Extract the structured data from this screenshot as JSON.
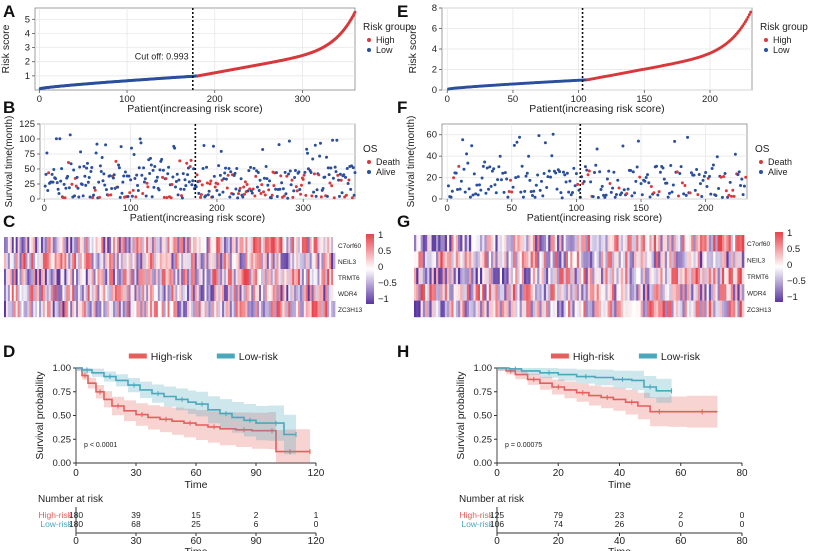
{
  "colors": {
    "high": "#d9393b",
    "low": "#2a4f9c",
    "km_high": "#e3605c",
    "km_low": "#4aa8bd",
    "hm_high": "#e8424b",
    "hm_low": "#5a36a1"
  },
  "panels": {
    "A": "A",
    "B": "B",
    "C": "C",
    "D": "D",
    "E": "E",
    "F": "F",
    "G": "G",
    "H": "H"
  },
  "chart_data": [
    {
      "id": "A",
      "type": "scatter",
      "title": "",
      "xlabel": "Patient(increasing risk score)",
      "ylabel": "Risk score",
      "xlim": [
        -5,
        360
      ],
      "ylim": [
        0,
        5.8
      ],
      "xticks": [
        0,
        100,
        200,
        300
      ],
      "yticks": [
        1,
        2,
        3,
        4,
        5
      ],
      "n": 360,
      "cutoff_index": 175,
      "cutoff_label": "Cut off: 0.993",
      "cutoff_value": 0.993,
      "legend": {
        "title": "Risk group",
        "items": [
          "High",
          "Low"
        ]
      },
      "series": [
        {
          "name": "Low",
          "range": [
            1,
            180
          ],
          "from": 0.1,
          "to": 0.99
        },
        {
          "name": "High",
          "range": [
            181,
            360
          ],
          "from": 1.0,
          "to": 5.5
        }
      ]
    },
    {
      "id": "B",
      "type": "scatter",
      "xlabel": "Patient(increasing risk score)",
      "ylabel": "Survival time(month)",
      "xlim": [
        -5,
        360
      ],
      "ylim": [
        0,
        125
      ],
      "xticks": [
        0,
        100,
        200,
        300
      ],
      "yticks": [
        0,
        25,
        50,
        75,
        100,
        125
      ],
      "n": 360,
      "cutoff_index": 175,
      "legend": {
        "title": "OS",
        "items": [
          "Death",
          "Alive"
        ]
      },
      "series": [
        {
          "name": "Death"
        },
        {
          "name": "Alive"
        }
      ]
    },
    {
      "id": "C",
      "type": "heatmap",
      "genes": [
        "C7orf60",
        "NEIL3",
        "TRMT6",
        "WDR4",
        "ZC3H13"
      ],
      "colorbar_ticks": [
        "1",
        "0.5",
        "0",
        "−0.5",
        "−1"
      ]
    },
    {
      "id": "D",
      "type": "line",
      "legend": [
        "High-risk",
        "Low-risk"
      ],
      "xlabel": "Time",
      "ylabel": "Survival probability",
      "xlim": [
        0,
        120
      ],
      "ylim": [
        0,
        1
      ],
      "xticks": [
        0,
        30,
        60,
        90,
        120
      ],
      "yticks": [
        "0.00",
        "0.25",
        "0.50",
        "0.75",
        "1.00"
      ],
      "pvalue": "p < 0.0001",
      "series": [
        {
          "name": "High-risk",
          "x": [
            0,
            3,
            6,
            10,
            14,
            18,
            24,
            30,
            36,
            42,
            48,
            54,
            60,
            66,
            72,
            80,
            88,
            96,
            100,
            104,
            110,
            117
          ],
          "y": [
            1,
            0.92,
            0.84,
            0.75,
            0.67,
            0.6,
            0.55,
            0.51,
            0.48,
            0.46,
            0.44,
            0.42,
            0.4,
            0.38,
            0.36,
            0.35,
            0.34,
            0.34,
            0.12,
            0.12,
            0.12,
            0.12
          ]
        },
        {
          "name": "Low-risk",
          "x": [
            0,
            3,
            8,
            14,
            20,
            26,
            32,
            38,
            44,
            50,
            56,
            60,
            66,
            72,
            78,
            84,
            90,
            96,
            104,
            110
          ],
          "y": [
            1,
            0.98,
            0.95,
            0.91,
            0.87,
            0.82,
            0.77,
            0.73,
            0.7,
            0.67,
            0.64,
            0.62,
            0.56,
            0.52,
            0.48,
            0.45,
            0.42,
            0.42,
            0.3,
            0.3
          ]
        }
      ]
    },
    {
      "id": "D-risk",
      "type": "table",
      "title": "Number at risk",
      "xlabel": "Time",
      "rows": [
        {
          "name": "High-risk",
          "values": [
            "180",
            "39",
            "15",
            "2",
            "1"
          ]
        },
        {
          "name": "Low-risk",
          "values": [
            "180",
            "68",
            "25",
            "6",
            "0"
          ]
        }
      ],
      "xticks": [
        0,
        30,
        60,
        90,
        120
      ]
    },
    {
      "id": "E",
      "type": "scatter",
      "xlabel": "Patient(increasing risk score)",
      "ylabel": "Risk score",
      "xlim": [
        -4,
        232
      ],
      "ylim": [
        0,
        8
      ],
      "xticks": [
        0,
        50,
        100,
        150,
        200
      ],
      "yticks": [
        0,
        2,
        4,
        6,
        8
      ],
      "n": 231,
      "cutoff_index": 103,
      "legend": {
        "title": "Risk group",
        "items": [
          "High",
          "Low"
        ]
      },
      "series": [
        {
          "name": "Low",
          "range": [
            1,
            106
          ],
          "from": 0.1,
          "to": 0.99
        },
        {
          "name": "High",
          "range": [
            107,
            231
          ],
          "from": 1.0,
          "to": 7.6
        }
      ]
    },
    {
      "id": "F",
      "type": "scatter",
      "xlabel": "Patient(increasing risk score)",
      "ylabel": "Survival time(month)",
      "xlim": [
        -4,
        232
      ],
      "ylim": [
        0,
        70
      ],
      "xticks": [
        0,
        50,
        100,
        150,
        200
      ],
      "yticks": [
        0,
        20,
        40,
        60
      ],
      "n": 231,
      "cutoff_index": 103,
      "legend": {
        "title": "OS",
        "items": [
          "Death",
          "Alive"
        ]
      },
      "series": [
        {
          "name": "Death"
        },
        {
          "name": "Alive"
        }
      ]
    },
    {
      "id": "G",
      "type": "heatmap",
      "genes": [
        "C7orf60",
        "NEIL3",
        "TRMT6",
        "WDR4",
        "ZC3H13"
      ],
      "colorbar_ticks": [
        "1",
        "0.5",
        "0",
        "−0.5",
        "−1"
      ]
    },
    {
      "id": "H",
      "type": "line",
      "legend": [
        "High-risk",
        "Low-risk"
      ],
      "xlabel": "Time",
      "ylabel": "Survival probability",
      "xlim": [
        0,
        80
      ],
      "ylim": [
        0,
        1
      ],
      "xticks": [
        0,
        20,
        40,
        60,
        80
      ],
      "yticks": [
        "0.00",
        "0.25",
        "0.50",
        "0.75",
        "1.00"
      ],
      "pvalue": "p = 0.00075",
      "series": [
        {
          "name": "High-risk",
          "x": [
            0,
            3,
            6,
            10,
            14,
            18,
            22,
            26,
            30,
            34,
            38,
            42,
            46,
            50,
            56,
            62,
            72
          ],
          "y": [
            1,
            0.97,
            0.93,
            0.88,
            0.84,
            0.8,
            0.77,
            0.74,
            0.71,
            0.69,
            0.67,
            0.64,
            0.6,
            0.54,
            0.54,
            0.54,
            0.54
          ]
        },
        {
          "name": "Low-risk",
          "x": [
            0,
            4,
            8,
            14,
            20,
            26,
            32,
            38,
            44,
            48,
            52,
            57
          ],
          "y": [
            1,
            0.99,
            0.97,
            0.95,
            0.93,
            0.91,
            0.9,
            0.88,
            0.87,
            0.8,
            0.76,
            0.76
          ]
        }
      ]
    },
    {
      "id": "H-risk",
      "type": "table",
      "title": "Number at risk",
      "xlabel": "Time",
      "rows": [
        {
          "name": "High-risk",
          "values": [
            "125",
            "79",
            "23",
            "2",
            "0"
          ]
        },
        {
          "name": "Low-risk",
          "values": [
            "106",
            "74",
            "26",
            "0",
            "0"
          ]
        }
      ],
      "xticks": [
        0,
        20,
        40,
        60,
        80
      ]
    }
  ]
}
